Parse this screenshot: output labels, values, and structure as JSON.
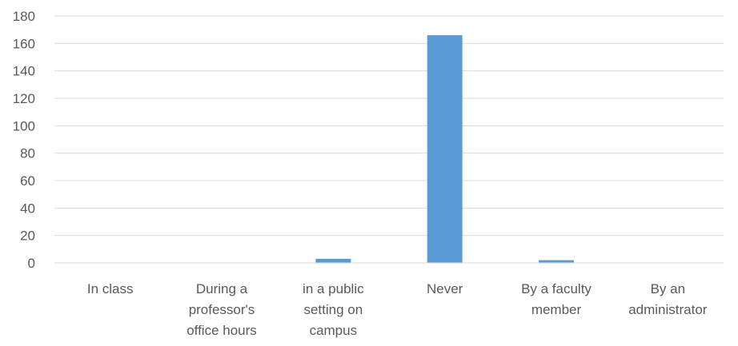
{
  "chart_data": {
    "type": "bar",
    "categories": [
      "In class",
      "During a professor's office hours",
      "in a public setting on campus",
      "Never",
      "By a faculty member",
      "By an administrator"
    ],
    "category_label_lines": [
      [
        "In class"
      ],
      [
        "During a",
        "professor's",
        "office hours"
      ],
      [
        "in a public",
        "setting on",
        "campus"
      ],
      [
        "Never"
      ],
      [
        "By a faculty",
        "member"
      ],
      [
        "By an",
        "administrator"
      ]
    ],
    "values": [
      0,
      0,
      3,
      166,
      2,
      0
    ],
    "ylim": [
      0,
      180
    ],
    "yticks": [
      0,
      20,
      40,
      60,
      80,
      100,
      120,
      140,
      160,
      180
    ],
    "title": "",
    "xlabel": "",
    "ylabel": "",
    "grid": true,
    "bar_color": "#5b9bd5"
  }
}
